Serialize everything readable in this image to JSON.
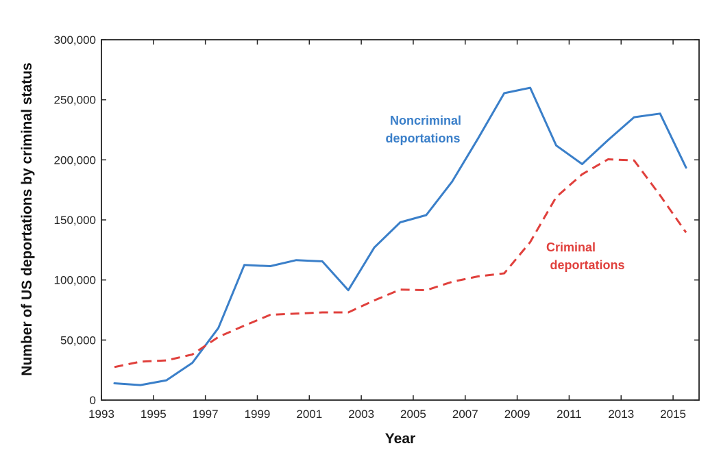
{
  "chart_data": {
    "type": "line",
    "xlabel": "Year",
    "ylabel": "Number of US deportations by criminal status",
    "xlim": [
      1993,
      2016
    ],
    "ylim": [
      0,
      300000
    ],
    "x_ticks": [
      1993,
      1995,
      1997,
      1999,
      2001,
      2003,
      2005,
      2007,
      2009,
      2011,
      2013,
      2015
    ],
    "x_tick_labels": [
      "1993",
      "1995",
      "1997",
      "1999",
      "2001",
      "2003",
      "2005",
      "2007",
      "2009",
      "2011",
      "2013",
      "2015"
    ],
    "y_ticks": [
      0,
      50000,
      100000,
      150000,
      200000,
      250000,
      300000
    ],
    "y_tick_labels": [
      "0",
      "50,000",
      "100,000",
      "150,000",
      "200,000",
      "250,000",
      "300,000"
    ],
    "grid": false,
    "x": [
      1993.5,
      1994.5,
      1995.5,
      1996.5,
      1997.5,
      1998.5,
      1999.5,
      2000.5,
      2001.5,
      2002.5,
      2003.5,
      2004.5,
      2005.5,
      2006.5,
      2007.5,
      2008.5,
      2009.5,
      2010.5,
      2011.5,
      2012.5,
      2013.5,
      2014.5,
      2015.5
    ],
    "series": [
      {
        "label_lines": [
          "Noncriminal",
          "deportations"
        ],
        "color": "#3a7fc9",
        "style": "solid",
        "values": [
          14000,
          12500,
          16500,
          31000,
          60000,
          112500,
          111500,
          116500,
          115500,
          91500,
          127000,
          148000,
          154000,
          182000,
          218000,
          255500,
          260000,
          212000,
          196500,
          216500,
          235500,
          238500,
          193500
        ]
      },
      {
        "label_lines": [
          "Criminal",
          "deportations"
        ],
        "color": "#e0403c",
        "style": "dashed",
        "values": [
          27500,
          32000,
          33000,
          38000,
          52500,
          62000,
          71000,
          72000,
          73000,
          73000,
          83000,
          92000,
          91500,
          98500,
          103000,
          105500,
          131500,
          169000,
          188000,
          200500,
          199500,
          170500,
          139500
        ]
      }
    ]
  }
}
